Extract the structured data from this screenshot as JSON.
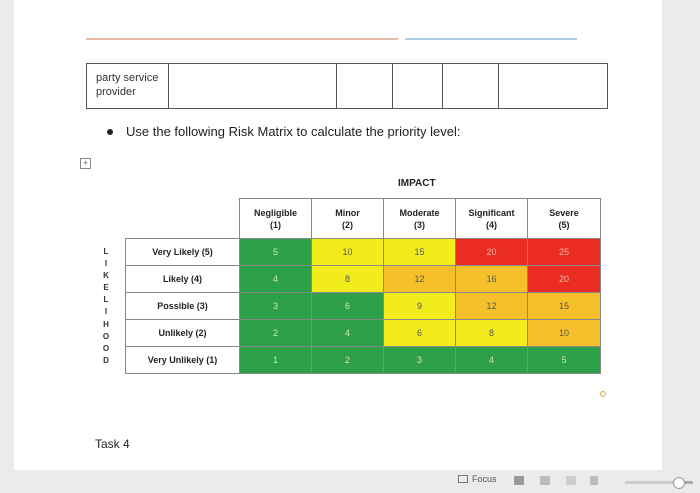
{
  "document": {
    "party_cell": "party service provider",
    "bullet": "Use the following Risk Matrix to calculate the priority level:",
    "impact_title": "IMPACT",
    "likelihood_letters": [
      "L",
      "I",
      "K",
      "E",
      "L",
      "I",
      "H",
      "O",
      "O",
      "D"
    ],
    "task": "Task 4"
  },
  "matrix": {
    "columns": [
      {
        "label": "Negligible",
        "score": "(1)"
      },
      {
        "label": "Minor",
        "score": "(2)"
      },
      {
        "label": "Moderate",
        "score": "(3)"
      },
      {
        "label": "Significant",
        "score": "(4)"
      },
      {
        "label": "Severe",
        "score": "(5)"
      }
    ],
    "rows": [
      {
        "label": "Very Likely (5)",
        "values": [
          "5",
          "10",
          "15",
          "20",
          "25"
        ],
        "levels": [
          "g",
          "y",
          "y",
          "r",
          "r"
        ]
      },
      {
        "label": "Likely (4)",
        "values": [
          "4",
          "8",
          "12",
          "16",
          "20"
        ],
        "levels": [
          "g",
          "y",
          "o",
          "o",
          "r"
        ]
      },
      {
        "label": "Possible (3)",
        "values": [
          "3",
          "6",
          "9",
          "12",
          "15"
        ],
        "levels": [
          "g",
          "g",
          "y",
          "o",
          "o"
        ]
      },
      {
        "label": "Unlikely (2)",
        "values": [
          "2",
          "4",
          "6",
          "8",
          "10"
        ],
        "levels": [
          "g",
          "g",
          "y",
          "y",
          "o"
        ]
      },
      {
        "label": "Very Unlikely (1)",
        "values": [
          "1",
          "2",
          "3",
          "4",
          "5"
        ],
        "levels": [
          "g",
          "g",
          "g",
          "g",
          "g"
        ]
      }
    ],
    "colors": {
      "green": "#2ea04a",
      "yellow": "#f2ec1d",
      "orange": "#f5c02b",
      "red": "#ea2c22"
    }
  },
  "taskbar": {
    "focus_label": "Focus",
    "zoom_fraction": 0.7
  }
}
